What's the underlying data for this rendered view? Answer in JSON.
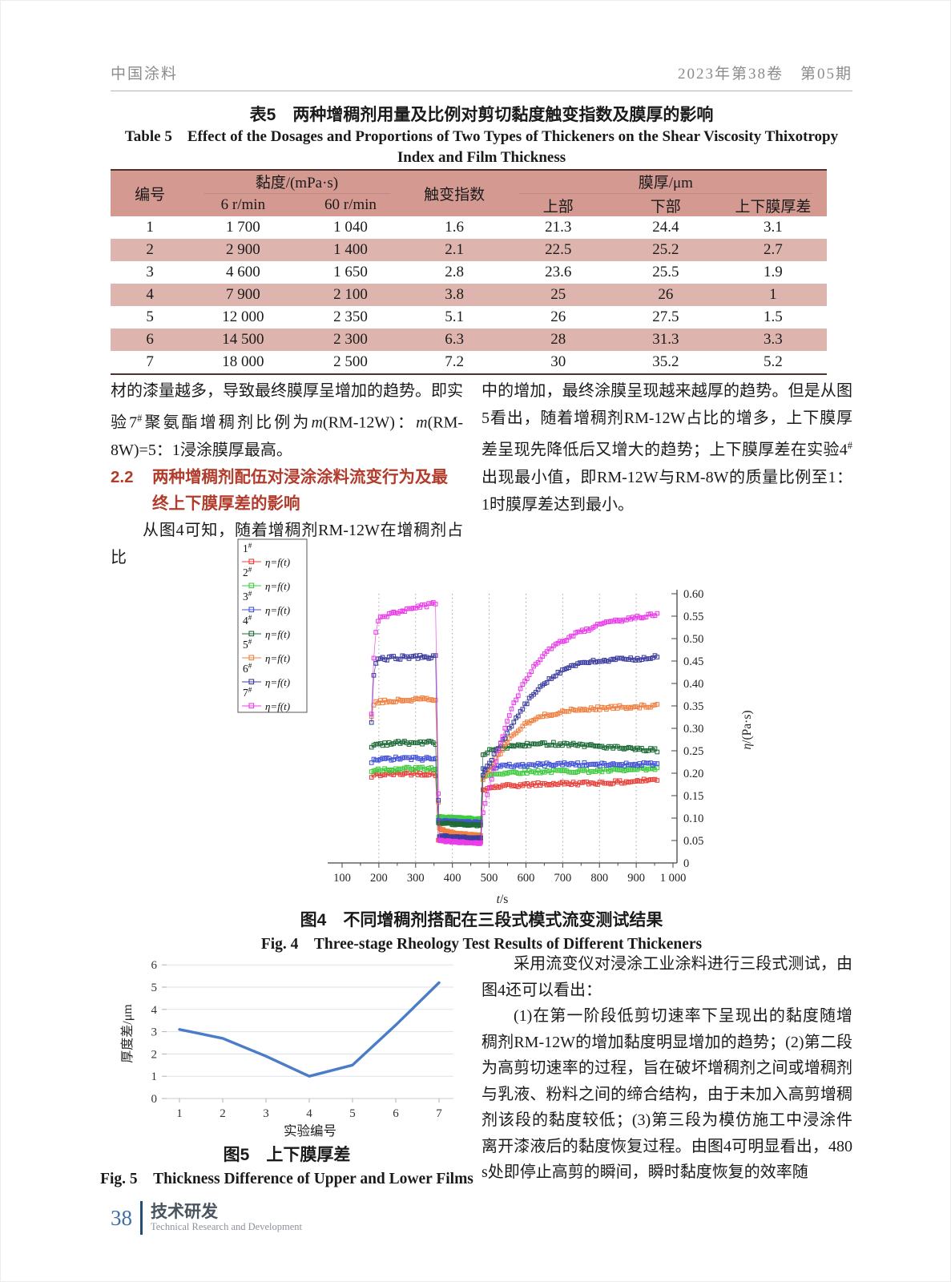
{
  "page": {
    "header_left": "中国涂料",
    "header_right": "2023年第38卷　第05期",
    "footer": {
      "page_number": "38",
      "section_cn": "技术研发",
      "section_en": "Technical Research and Development"
    }
  },
  "table5": {
    "title_cn": "表5　两种增稠剂用量及比例对剪切黏度触变指数及膜厚的影响",
    "title_en": "Table 5　Effect of the Dosages and Proportions of Two Types of Thickeners on the Shear Viscosity Thixotropy Index and Film Thickness",
    "col_group_viscosity": "黏度/(mPa·s)",
    "col_group_film": "膜厚/μm",
    "headers": {
      "id": "编号",
      "v6": "6 r/min",
      "v60": "60 r/min",
      "thix": "触变指数",
      "upper": "上部",
      "lower": "下部",
      "diff": "上下膜厚差"
    },
    "rows": [
      [
        "1",
        "1 700",
        "1 040",
        "1.6",
        "21.3",
        "24.4",
        "3.1"
      ],
      [
        "2",
        "2 900",
        "1 400",
        "2.1",
        "22.5",
        "25.2",
        "2.7"
      ],
      [
        "3",
        "4 600",
        "1 650",
        "2.8",
        "23.6",
        "25.5",
        "1.9"
      ],
      [
        "4",
        "7 900",
        "2 100",
        "3.8",
        "25",
        "26",
        "1"
      ],
      [
        "5",
        "12 000",
        "2 350",
        "5.1",
        "26",
        "27.5",
        "1.5"
      ],
      [
        "6",
        "14 500",
        "2 300",
        "6.3",
        "28",
        "31.3",
        "3.3"
      ],
      [
        "7",
        "18 000",
        "2 500",
        "7.2",
        "30",
        "35.2",
        "5.2"
      ]
    ]
  },
  "text": {
    "left_p1": [
      {
        "t": "材的漆量越多，导致最终膜厚呈增加的趋势。即实验7"
      },
      {
        "t": "#",
        "sup": true
      },
      {
        "t": "聚氨酯增稠剂比例为"
      },
      {
        "t": "m",
        "i": true
      },
      {
        "t": "(RM-12W)："
      },
      {
        "t": "m",
        "i": true
      },
      {
        "t": "(RM-8W)=5：1浸涂膜厚最高。"
      }
    ],
    "heading_num": "2.2",
    "heading_text": "两种增稠剂配伍对浸涂涂料流变行为及最终上下膜厚差的影响",
    "left_p2": "从图4可知，随着增稠剂RM-12W在增稠剂占比",
    "right_p1": [
      {
        "t": "中的增加，最终涂膜呈现越来越厚的趋势。但是从图5看出，随着增稠剂RM-12W占比的增多，上下膜厚差呈现先降低后又增大的趋势；上下膜厚差在实验4"
      },
      {
        "t": "#",
        "sup": true
      },
      {
        "t": "出现最小值，即RM-12W与RM-8W的质量比例至1：1时膜厚差达到最小。"
      }
    ],
    "right_p2": "采用流变仪对浸涂工业涂料进行三段式测试，由图4还可以看出：",
    "right_p3": "(1)在第一阶段低剪切速率下呈现出的黏度随增稠剂RM-12W的增加黏度明显增加的趋势；(2)第二段为高剪切速率的过程，旨在破坏增稠剂之间或增稠剂与乳液、粉料之间的缔合结构，由于未加入高剪增稠剂该段的黏度较低；(3)第三段为模仿施工中浸涂件离开漆液后的黏度恢复过程。由图4可明显看出，480 s处即停止高剪的瞬间，瞬时黏度恢复的效率随"
  },
  "figures": {
    "fig4_cn": "图4　不同增稠剂搭配在三段式模式流变测试结果",
    "fig4_en": "Fig. 4　Three-stage Rheology Test Results of Different Thickeners",
    "fig5_cn": "图5　上下膜厚差",
    "fig5_en": "Fig. 5　Thickness Difference of Upper and Lower Films"
  },
  "chart_data": [
    {
      "type": "line",
      "title": "Three-stage rheology test",
      "xlabel": "t/s",
      "ylabel": "η/(Pa·s)",
      "xlim": [
        100,
        1000
      ],
      "ylim": [
        0,
        0.6
      ],
      "x_tick_interval": 100,
      "y_tick_interval": 0.05,
      "grid": "vertical-dotted",
      "legend_position": "upper-left-outside",
      "legend_formula": "η=f(t)",
      "stages": {
        "low_shear": [
          180,
          360
        ],
        "high_shear": [
          360,
          480
        ],
        "recovery": [
          480,
          960
        ]
      },
      "marker": "open-square",
      "series": [
        {
          "name": "1#",
          "color": "#e8403a",
          "points": [
            [
              180,
              0.19
            ],
            [
              186,
              0.196
            ],
            [
              220,
              0.198
            ],
            [
              300,
              0.2
            ],
            [
              358,
              0.198
            ],
            [
              362,
              0.052
            ],
            [
              420,
              0.05
            ],
            [
              478,
              0.048
            ],
            [
              483,
              0.16
            ],
            [
              500,
              0.168
            ],
            [
              560,
              0.172
            ],
            [
              620,
              0.175
            ],
            [
              700,
              0.177
            ],
            [
              780,
              0.178
            ],
            [
              860,
              0.18
            ],
            [
              955,
              0.186
            ]
          ]
        },
        {
          "name": "2#",
          "color": "#3ecc3e",
          "points": [
            [
              180,
              0.205
            ],
            [
              190,
              0.208
            ],
            [
              260,
              0.21
            ],
            [
              358,
              0.21
            ],
            [
              362,
              0.102
            ],
            [
              478,
              0.098
            ],
            [
              483,
              0.192
            ],
            [
              510,
              0.198
            ],
            [
              560,
              0.202
            ],
            [
              640,
              0.204
            ],
            [
              720,
              0.205
            ],
            [
              800,
              0.205
            ],
            [
              880,
              0.207
            ],
            [
              955,
              0.209
            ]
          ]
        },
        {
          "name": "3#",
          "color": "#4353d8",
          "points": [
            [
              180,
              0.225
            ],
            [
              190,
              0.23
            ],
            [
              260,
              0.233
            ],
            [
              358,
              0.232
            ],
            [
              362,
              0.094
            ],
            [
              478,
              0.09
            ],
            [
              483,
              0.208
            ],
            [
              510,
              0.214
            ],
            [
              560,
              0.217
            ],
            [
              640,
              0.219
            ],
            [
              720,
              0.221
            ],
            [
              800,
              0.219
            ],
            [
              880,
              0.22
            ],
            [
              955,
              0.221
            ]
          ]
        },
        {
          "name": "4#",
          "color": "#1e6b38",
          "points": [
            [
              180,
              0.258
            ],
            [
              190,
              0.265
            ],
            [
              260,
              0.268
            ],
            [
              358,
              0.268
            ],
            [
              362,
              0.088
            ],
            [
              478,
              0.084
            ],
            [
              483,
              0.238
            ],
            [
              500,
              0.25
            ],
            [
              540,
              0.258
            ],
            [
              600,
              0.263
            ],
            [
              660,
              0.266
            ],
            [
              720,
              0.265
            ],
            [
              800,
              0.26
            ],
            [
              880,
              0.254
            ],
            [
              955,
              0.251
            ]
          ]
        },
        {
          "name": "5#",
          "color": "#f08040",
          "points": [
            [
              180,
              0.325
            ],
            [
              185,
              0.35
            ],
            [
              195,
              0.358
            ],
            [
              260,
              0.362
            ],
            [
              320,
              0.365
            ],
            [
              358,
              0.362
            ],
            [
              363,
              0.078
            ],
            [
              380,
              0.072
            ],
            [
              410,
              0.066
            ],
            [
              445,
              0.063
            ],
            [
              478,
              0.061
            ],
            [
              483,
              0.185
            ],
            [
              500,
              0.205
            ],
            [
              530,
              0.245
            ],
            [
              560,
              0.282
            ],
            [
              600,
              0.31
            ],
            [
              640,
              0.326
            ],
            [
              690,
              0.336
            ],
            [
              740,
              0.341
            ],
            [
              800,
              0.345
            ],
            [
              880,
              0.348
            ],
            [
              955,
              0.35
            ]
          ]
        },
        {
          "name": "6#",
          "color": "#3c3c9e",
          "points": [
            [
              180,
              0.31
            ],
            [
              184,
              0.4
            ],
            [
              190,
              0.445
            ],
            [
              200,
              0.455
            ],
            [
              260,
              0.458
            ],
            [
              320,
              0.46
            ],
            [
              358,
              0.458
            ],
            [
              363,
              0.06
            ],
            [
              420,
              0.057
            ],
            [
              478,
              0.055
            ],
            [
              483,
              0.198
            ],
            [
              500,
              0.222
            ],
            [
              530,
              0.262
            ],
            [
              560,
              0.305
            ],
            [
              600,
              0.355
            ],
            [
              640,
              0.395
            ],
            [
              680,
              0.42
            ],
            [
              720,
              0.438
            ],
            [
              760,
              0.446
            ],
            [
              800,
              0.45
            ],
            [
              850,
              0.453
            ],
            [
              900,
              0.455
            ],
            [
              955,
              0.459
            ]
          ]
        },
        {
          "name": "7#",
          "color": "#ea3cea",
          "points": [
            [
              180,
              0.33
            ],
            [
              184,
              0.43
            ],
            [
              190,
              0.5
            ],
            [
              197,
              0.54
            ],
            [
              210,
              0.55
            ],
            [
              250,
              0.558
            ],
            [
              300,
              0.568
            ],
            [
              340,
              0.576
            ],
            [
              358,
              0.58
            ],
            [
              363,
              0.05
            ],
            [
              420,
              0.046
            ],
            [
              478,
              0.044
            ],
            [
              483,
              0.115
            ],
            [
              495,
              0.15
            ],
            [
              510,
              0.2
            ],
            [
              530,
              0.265
            ],
            [
              550,
              0.318
            ],
            [
              575,
              0.37
            ],
            [
              600,
              0.41
            ],
            [
              630,
              0.447
            ],
            [
              660,
              0.472
            ],
            [
              690,
              0.49
            ],
            [
              720,
              0.504
            ],
            [
              760,
              0.518
            ],
            [
              800,
              0.53
            ],
            [
              850,
              0.54
            ],
            [
              900,
              0.548
            ],
            [
              955,
              0.553
            ]
          ]
        }
      ]
    },
    {
      "type": "line",
      "title": "Thickness difference of upper and lower films",
      "categories": [
        1,
        2,
        3,
        4,
        5,
        6,
        7
      ],
      "values": [
        3.1,
        2.7,
        1.9,
        1.0,
        1.5,
        3.3,
        5.2
      ],
      "xlabel": "实验编号",
      "ylabel": "厚度差/μm",
      "ylim": [
        0,
        6
      ],
      "y_tick_interval": 1,
      "line_color": "#4a7cc7",
      "grid": "horizontal"
    }
  ]
}
